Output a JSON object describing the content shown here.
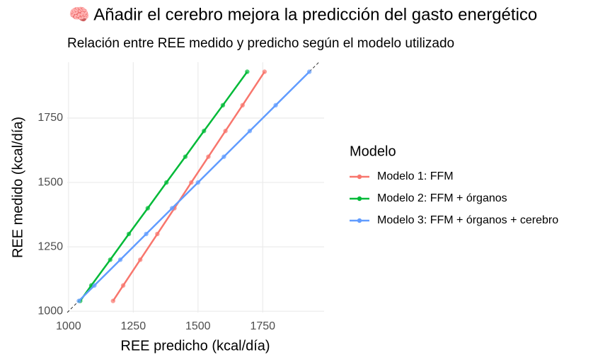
{
  "chart_data": {
    "type": "line",
    "title": "🧠 Añadir el cerebro mejora la predicción del gasto energético",
    "subtitle": "Relación entre REE medido y predicho según el modelo utilizado",
    "x_label": "REE predicho (kcal/día)",
    "y_label": "REE medido (kcal/día)",
    "legend_title": "Modelo",
    "legend_position": "right",
    "grid": true,
    "xlim": [
      995,
      1987
    ],
    "xticks": [
      1000,
      1250,
      1500,
      1750
    ],
    "ylim": [
      995,
      1967
    ],
    "yticks": [
      1000,
      1250,
      1500,
      1750
    ],
    "series": [
      {
        "name": "Modelo 1: FFM",
        "color": "#F8766D",
        "x": [
          1172,
          1211,
          1277,
          1343,
          1409,
          1474,
          1540,
          1606,
          1672,
          1757
        ],
        "values": [
          1040,
          1100,
          1200,
          1300,
          1400,
          1500,
          1600,
          1700,
          1800,
          1930
        ]
      },
      {
        "name": "Modelo 2: FFM + órganos",
        "color": "#00BA38",
        "x": [
          1045,
          1088,
          1161,
          1233,
          1306,
          1378,
          1451,
          1523,
          1596,
          1690
        ],
        "values": [
          1040,
          1100,
          1200,
          1300,
          1400,
          1500,
          1600,
          1700,
          1800,
          1930
        ]
      },
      {
        "name": "Modelo 3: FFM + órganos + cerebro",
        "color": "#619CFF",
        "x": [
          1040,
          1100,
          1200,
          1300,
          1400,
          1500,
          1600,
          1700,
          1800,
          1930
        ],
        "values": [
          1040,
          1100,
          1200,
          1300,
          1400,
          1500,
          1600,
          1700,
          1800,
          1930
        ]
      }
    ]
  }
}
